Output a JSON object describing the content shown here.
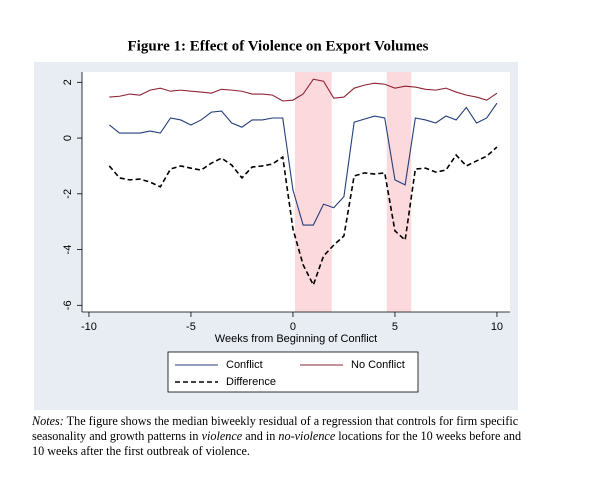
{
  "chart_data": {
    "type": "line",
    "title": "Figure 1: Effect of Violence on Export Volumes",
    "xlabel": "Weeks from Beginning of Conflict",
    "x": [
      -9,
      -8.5,
      -8,
      -7.5,
      -7,
      -6.5,
      -6,
      -5.5,
      -5,
      -4.5,
      -4,
      -3.5,
      -3,
      -2.5,
      -2,
      -1.5,
      -1,
      -0.5,
      0,
      0.5,
      1,
      1.5,
      2,
      2.5,
      3,
      3.5,
      4,
      4.5,
      5,
      5.5,
      6,
      6.5,
      7,
      7.5,
      8,
      8.5,
      9,
      9.5,
      10
    ],
    "series": [
      {
        "name": "Conflict",
        "color": "#243f7a",
        "dash": false,
        "values": [
          0.47,
          0.18,
          0.18,
          0.18,
          0.25,
          0.18,
          0.72,
          0.65,
          0.47,
          0.65,
          0.93,
          0.97,
          0.54,
          0.39,
          0.65,
          0.65,
          0.72,
          0.72,
          -1.86,
          -3.12,
          -3.12,
          -2.37,
          -2.5,
          -2.1,
          0.57,
          0.68,
          0.79,
          0.72,
          -1.5,
          -1.68,
          0.72,
          0.65,
          0.54,
          0.79,
          0.65,
          1.1,
          0.54,
          0.72,
          1.25
        ]
      },
      {
        "name": "No Conflict",
        "color": "#8f2335",
        "dash": false,
        "values": [
          1.47,
          1.5,
          1.58,
          1.54,
          1.72,
          1.79,
          1.68,
          1.72,
          1.68,
          1.65,
          1.61,
          1.75,
          1.72,
          1.68,
          1.58,
          1.58,
          1.54,
          1.33,
          1.36,
          1.58,
          2.11,
          2.04,
          1.43,
          1.47,
          1.79,
          1.9,
          1.97,
          1.93,
          1.79,
          1.86,
          1.83,
          1.75,
          1.72,
          1.79,
          1.65,
          1.54,
          1.47,
          1.36,
          1.61
        ]
      },
      {
        "name": "Difference",
        "color": "#000000",
        "dash": true,
        "values": [
          -1,
          -1.43,
          -1.5,
          -1.47,
          -1.58,
          -1.75,
          -1.11,
          -1,
          -1.08,
          -1.15,
          -0.9,
          -0.72,
          -0.97,
          -1.43,
          -1.04,
          -1,
          -0.93,
          -0.68,
          -3.26,
          -4.55,
          -5.27,
          -4.23,
          -3.84,
          -3.51,
          -1.36,
          -1.25,
          -1.29,
          -1.25,
          -3.33,
          -3.66,
          -1.11,
          -1.08,
          -1.22,
          -1.15,
          -0.61,
          -1,
          -0.82,
          -0.65,
          -0.32
        ]
      }
    ],
    "shaded_regions": [
      [
        0.1,
        1.9
      ],
      [
        4.6,
        5.8
      ]
    ],
    "shade_color": "#fbd9dc",
    "xlim": [
      -10.34,
      10.64
    ],
    "ylim": [
      -6.24,
      2.37
    ],
    "xticks": [
      -10,
      -5,
      0,
      5,
      10
    ],
    "yticks": [
      2,
      0,
      -2,
      -4,
      -6
    ]
  },
  "notes": [
    {
      "text": "Notes:",
      "italic": true
    },
    {
      "text": " The figure shows the median biweekly residual of a regression that controls for firm specific seasonality and growth patterns in ",
      "italic": false
    },
    {
      "text": "violence",
      "italic": true
    },
    {
      "text": " and in ",
      "italic": false
    },
    {
      "text": "no-violence",
      "italic": true
    },
    {
      "text": " locations for the 10 weeks before and 10 weeks after the first outbreak of violence.",
      "italic": false
    }
  ]
}
